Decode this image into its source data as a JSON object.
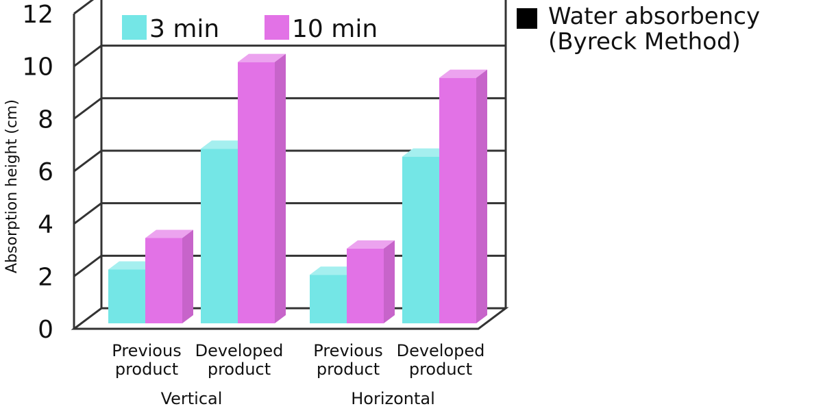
{
  "chart_data": {
    "type": "bar",
    "title_lines": [
      "Water absorbency",
      "(Byreck Method)"
    ],
    "ylabel": "Absorption height (cm)",
    "ylim": [
      0,
      12
    ],
    "yticks": [
      0,
      2,
      4,
      6,
      8,
      10,
      12
    ],
    "groups": [
      {
        "label": "Vertical",
        "categories": [
          "Previous\nproduct",
          "Developed\nproduct"
        ]
      },
      {
        "label": "Horizontal",
        "categories": [
          "Previous\nproduct",
          "Developed\nproduct"
        ]
      }
    ],
    "series": [
      {
        "name": "3 min",
        "color": "#74e6e6",
        "values": [
          2.1,
          6.7,
          1.9,
          6.4
        ]
      },
      {
        "name": "10 min",
        "color": "#e272e6",
        "values": [
          3.3,
          10.0,
          2.9,
          9.4
        ]
      }
    ],
    "legend_position": "top-inside",
    "grid": true
  }
}
